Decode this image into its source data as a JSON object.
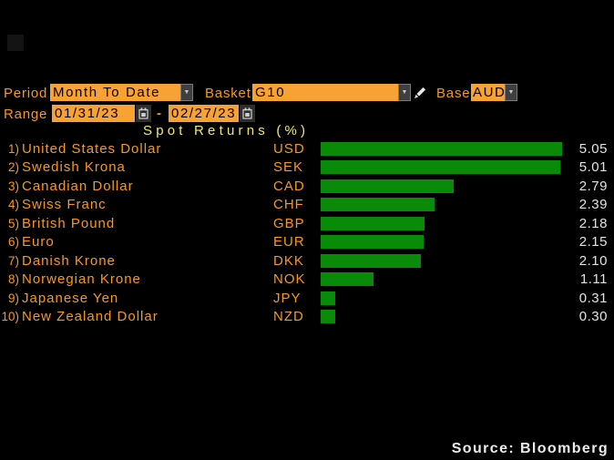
{
  "controls": {
    "period": {
      "label": "Period",
      "value": "Month To Date"
    },
    "basket": {
      "label": "Basket",
      "value": "G10"
    },
    "base": {
      "label": "Base",
      "value": "AUD"
    },
    "range": {
      "label": "Range",
      "start_date": "01/31/23",
      "separator": "-",
      "end_date": "02/27/23"
    },
    "dropdown_arrow": "▼",
    "icons": [
      "pencil-icon",
      "calendar-icon"
    ]
  },
  "chart_data": {
    "type": "bar",
    "orientation": "horizontal",
    "title": "Spot Returns (%)",
    "categories": [
      "United States Dollar",
      "Swedish Krona",
      "Canadian Dollar",
      "Swiss Franc",
      "British Pound",
      "Euro",
      "Danish Krone",
      "Norwegian Krone",
      "Japanese Yen",
      "New Zealand Dollar"
    ],
    "tickers": [
      "USD",
      "SEK",
      "CAD",
      "CHF",
      "GBP",
      "EUR",
      "DKK",
      "NOK",
      "JPY",
      "NZD"
    ],
    "ranks": [
      "1)",
      "2)",
      "3)",
      "4)",
      "5)",
      "6)",
      "7)",
      "8)",
      "9)",
      "10)"
    ],
    "values": [
      5.05,
      5.01,
      2.79,
      2.39,
      2.18,
      2.15,
      2.1,
      1.11,
      0.31,
      0.3
    ],
    "value_labels": [
      "5.05",
      "5.01",
      "2.79",
      "2.39",
      "2.18",
      "2.15",
      "2.10",
      "1.11",
      "0.31",
      "0.30"
    ],
    "xlim": [
      0,
      5.05
    ],
    "grid": false,
    "legend": false,
    "bar_color": "#098a09",
    "label_color": "#f9981e",
    "value_color": "#e2e2e2",
    "title_color": "#f0eb66"
  },
  "footer": {
    "source": "Source: Bloomberg"
  }
}
